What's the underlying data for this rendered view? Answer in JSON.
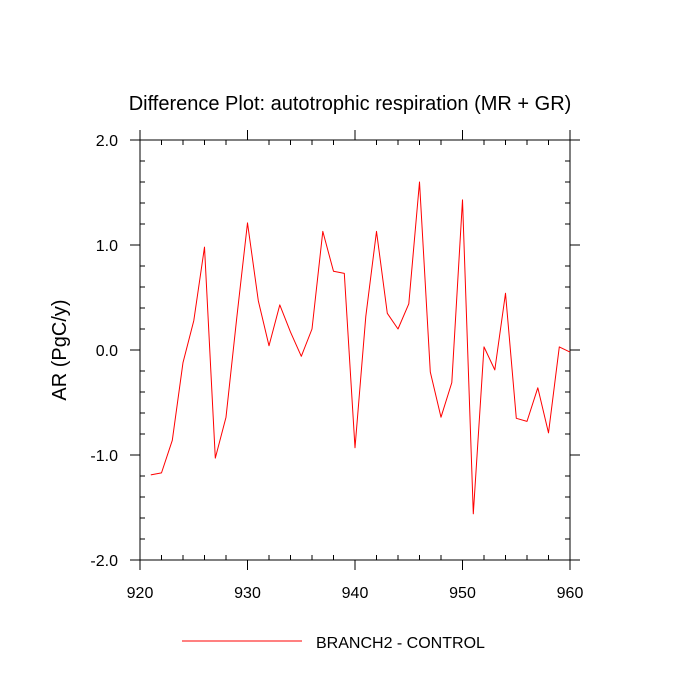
{
  "chart_data": {
    "type": "line",
    "title": "Difference Plot: autotrophic respiration (MR + GR)",
    "xlabel": "",
    "ylabel": "AR  (PgC/y)",
    "xlim": [
      920,
      960
    ],
    "ylim": [
      -2.0,
      2.0
    ],
    "x_ticks": [
      920,
      930,
      940,
      950,
      960
    ],
    "x_tick_labels": [
      "920",
      "930",
      "940",
      "950",
      "960"
    ],
    "y_ticks": [
      -2.0,
      -1.0,
      0.0,
      1.0,
      2.0
    ],
    "y_tick_labels": [
      "-2.0",
      "-1.0",
      "0.0",
      "1.0",
      "2.0"
    ],
    "legend_position": "bottom",
    "series": [
      {
        "name": "BRANCH2 - CONTROL",
        "color": "#ff0000",
        "x": [
          921,
          922,
          923,
          924,
          925,
          926,
          927,
          928,
          929,
          930,
          931,
          932,
          933,
          934,
          935,
          936,
          937,
          938,
          939,
          940,
          941,
          942,
          943,
          944,
          945,
          946,
          947,
          948,
          949,
          950,
          951,
          952,
          953,
          954,
          955,
          956,
          957,
          958,
          959,
          960
        ],
        "values": [
          -1.19,
          -1.17,
          -0.86,
          -0.12,
          0.28,
          0.98,
          -1.03,
          -0.64,
          0.31,
          1.21,
          0.47,
          0.04,
          0.43,
          0.17,
          -0.06,
          0.2,
          1.13,
          0.75,
          0.73,
          -0.93,
          0.32,
          1.13,
          0.35,
          0.2,
          0.44,
          1.6,
          -0.21,
          -0.64,
          -0.31,
          1.43,
          -1.56,
          0.03,
          -0.19,
          0.54,
          -0.65,
          -0.68,
          -0.36,
          -0.79,
          0.03,
          -0.02
        ]
      }
    ]
  }
}
